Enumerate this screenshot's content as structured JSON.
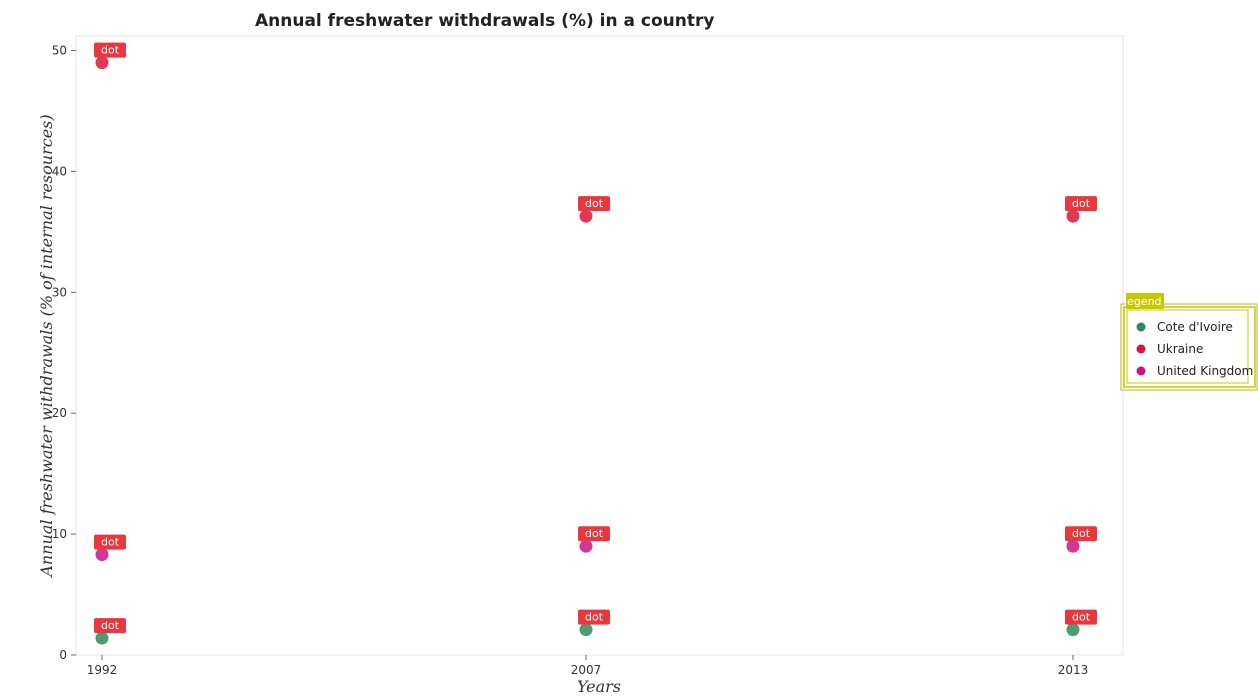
{
  "chart_data": {
    "type": "scatter",
    "title": "Annual freshwater withdrawals (%) in a country",
    "xlabel": "Years",
    "ylabel": "Annual freshwater withdrawals (% of internal resources)",
    "categories": [
      "1992",
      "2007",
      "2013"
    ],
    "ylim": [
      0,
      51.2
    ],
    "yticks": [
      0,
      10,
      20,
      30,
      40,
      50
    ],
    "grid": false,
    "legend_position": "right",
    "legend_title": "legend",
    "point_label": "dot",
    "series": [
      {
        "name": "Cote d'Ivoire",
        "color": "#2e8b57",
        "values": [
          1.4,
          2.1,
          2.1
        ]
      },
      {
        "name": "Ukraine",
        "color": "#dc143c",
        "values": [
          49.0,
          36.3,
          36.3
        ]
      },
      {
        "name": "United Kingdom",
        "color": "#c71585",
        "values": [
          8.3,
          9.0,
          9.0
        ]
      }
    ],
    "label_box_color": "#e8383d",
    "legend_box_color": "#c8c800"
  }
}
